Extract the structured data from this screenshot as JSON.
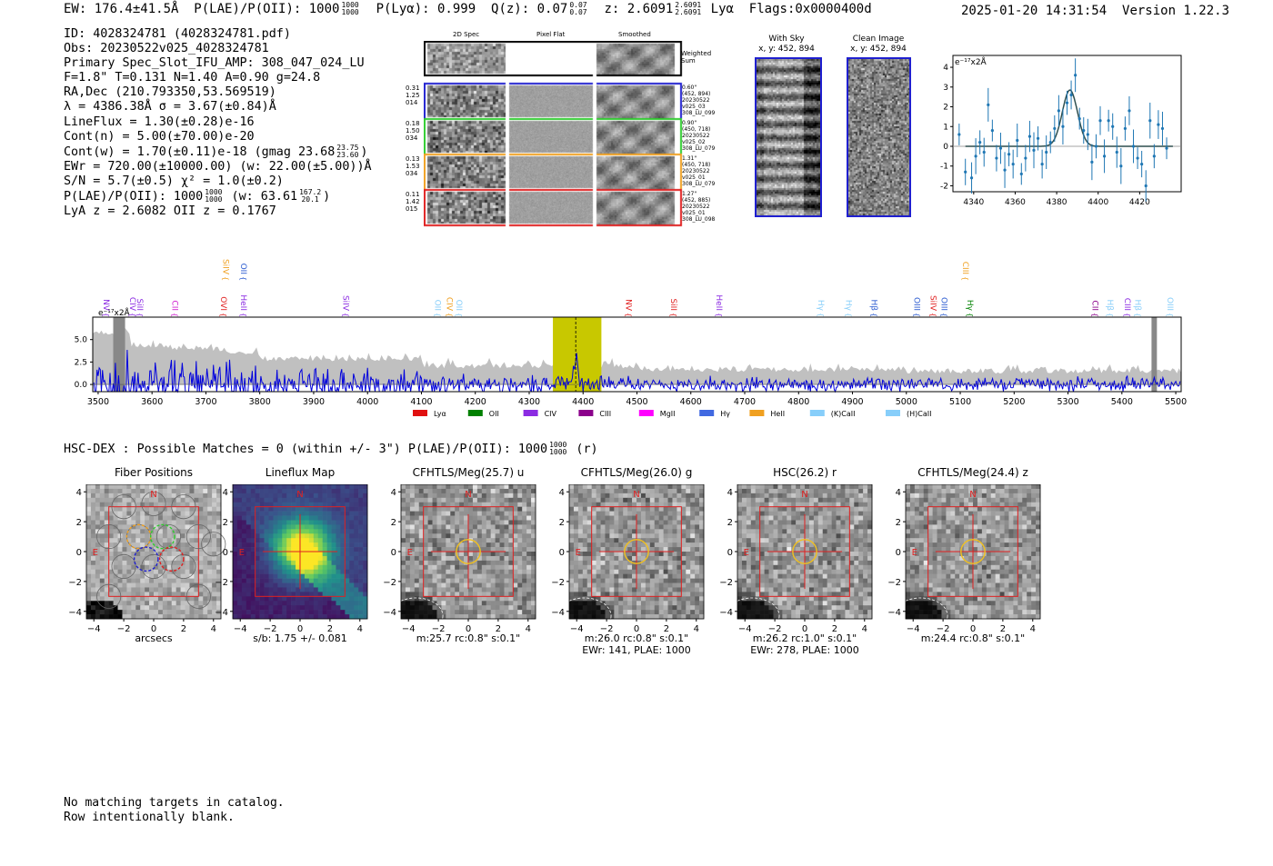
{
  "header": {
    "ew": "EW: 176.4±41.5Å",
    "plae_label": "P(LAE)/P(OII): 1000",
    "plae_hi": "1000",
    "plae_lo": "1000",
    "plya": "P(Lyα): 0.999",
    "qz_label": "Q(z): 0.07",
    "qz_hi": "0.07",
    "qz_lo": "0.07",
    "z_label": "z: 2.6091",
    "z_hi": "2.6091",
    "z_lo": "2.6091",
    "line": "Lyα",
    "flags": "Flags:0x0000400d",
    "datetime": "2025-01-20 14:31:54",
    "version": "Version 1.22.3"
  },
  "info": {
    "id": "ID: 4028324781 (4028324781.pdf)",
    "obs": "Obs: 20230522v025_4028324781",
    "primary": "Primary Spec_Slot_IFU_AMP: 308_047_024_LU",
    "fparams": "F=1.8\"  T=0.131  N=1.40  A=0.90  g=24.8",
    "radec": "RA,Dec (210.793350,53.569519)",
    "lambda": "λ = 4386.38Å   σ = 3.67(±0.84)Å",
    "lineflux": "LineFlux = 1.30(±0.28)e-16",
    "contn": "Cont(n) = 5.00(±70.00)e-20",
    "contw": "Cont(w) = 1.70(±0.11)e-18 (gmag 23.68",
    "contw_hi": "23.75",
    "contw_lo": "23.60",
    "contw_end": ")",
    "ewr": "EWr = 720.00(±10000.00) (w: 22.00(±5.00))Å",
    "sn": "S/N = 5.7(±0.5)  χ² = 1.0(±0.2)",
    "plae": "P(LAE)/P(OII): 1000",
    "plae_hi": "1000",
    "plae_lo": "1000",
    "plae_w": "(w: 63.61",
    "plae_w_hi": "167.2",
    "plae_w_lo": "20.1",
    "plae_w_end": ")",
    "lyaz": "LyA z = 2.6082  OII z = 0.1767"
  },
  "spec2d": {
    "col_titles": [
      "2D Spec",
      "Pixel Flat",
      "Smoothed"
    ],
    "weighted": "Weighted\nSum",
    "rows": [
      {
        "left": [
          "0.31",
          "1.25",
          "014"
        ],
        "right": [
          "0.60\"",
          "(452, 894)",
          "20230522",
          "v025_03",
          "308_LU_099"
        ],
        "color": "#1f1fcf"
      },
      {
        "left": [
          "0.18",
          "1.50",
          "034"
        ],
        "right": [
          "0.90\"",
          "(450, 718)",
          "20230522",
          "v025_02",
          "308_LU_079"
        ],
        "color": "#2ecc2e"
      },
      {
        "left": [
          "0.13",
          "1.53",
          "034"
        ],
        "right": [
          "1.31\"",
          "(450, 718)",
          "20230522",
          "v025_01",
          "308_LU_079"
        ],
        "color": "#f0a020"
      },
      {
        "left": [
          "0.11",
          "1.42",
          "015"
        ],
        "right": [
          "1.27\"",
          "(452, 885)",
          "20230522",
          "v025_01",
          "308_LU_098"
        ],
        "color": "#e02020"
      }
    ]
  },
  "sky": {
    "with_sky_title": "With Sky",
    "with_sky_coord": "x, y: 452, 894",
    "clean_title": "Clean Image",
    "clean_coord": "x, y: 452, 894"
  },
  "zoom_chart": {
    "ylabel": "e⁻¹⁷x2Å",
    "xticks": [
      4340,
      4360,
      4380,
      4400,
      4420
    ],
    "yticks": [
      -2,
      -1,
      0,
      1,
      2,
      3,
      4
    ],
    "xlim": [
      4330,
      4440
    ],
    "ylim": [
      -2.3,
      4.6
    ],
    "points_x": [
      4333,
      4336,
      4339,
      4341,
      4343,
      4345,
      4347,
      4349,
      4351,
      4353,
      4355,
      4357,
      4359,
      4361,
      4363,
      4365,
      4367,
      4369,
      4371,
      4373,
      4375,
      4377,
      4379,
      4381,
      4383,
      4385,
      4387,
      4389,
      4391,
      4393,
      4395,
      4397,
      4399,
      4401,
      4403,
      4405,
      4407,
      4409,
      4411,
      4413,
      4415,
      4417,
      4419,
      4421,
      4423,
      4425,
      4427,
      4429,
      4431,
      4433
    ],
    "points_y": [
      0.6,
      -1.3,
      -1.6,
      -0.5,
      0.2,
      -0.3,
      2.1,
      0.8,
      -0.6,
      -0.1,
      -1.2,
      -0.4,
      -0.9,
      0.3,
      -1.4,
      -0.6,
      0.5,
      -0.2,
      0.4,
      -0.9,
      -0.3,
      0.2,
      0.9,
      1.8,
      1.0,
      2.2,
      2.6,
      3.6,
      1.4,
      0.8,
      0.6,
      -0.8,
      0.0,
      1.3,
      -0.5,
      1.3,
      1.0,
      -0.3,
      -1.0,
      0.9,
      1.8,
      0.0,
      -0.6,
      -0.9,
      -2.0,
      1.3,
      -0.5,
      1.1,
      0.9,
      -0.1
    ],
    "fit": {
      "amp": 2.85,
      "center": 4386.38,
      "sigma": 3.67
    }
  },
  "full_spectrum": {
    "ylabel": "e⁻¹⁷x2Å",
    "xticks": [
      3500,
      3600,
      3700,
      3800,
      3900,
      4000,
      4100,
      4200,
      4300,
      4400,
      4500,
      4600,
      4700,
      4800,
      4900,
      5000,
      5100,
      5200,
      5300,
      5400,
      5500
    ],
    "yticks": [
      0.0,
      2.5,
      5.0
    ],
    "xlim": [
      3490,
      5510
    ],
    "ylim": [
      -0.8,
      7.5
    ],
    "highlight": [
      4344,
      4434
    ],
    "line_center": 4386.38,
    "lines_upper": [
      {
        "name": "NV",
        "wave": 3505,
        "color": "#8b2be2",
        "row": "low"
      },
      {
        "name": "CIV",
        "wave": 3554,
        "color": "#8b2be2",
        "row": "low"
      },
      {
        "name": "SiII",
        "wave": 3568,
        "color": "#8b2be2",
        "row": "low"
      },
      {
        "name": "CII",
        "wave": 3633,
        "color": "#d020d0",
        "row": "low"
      },
      {
        "name": "OVI",
        "wave": 3723,
        "color": "#e02020",
        "row": "low"
      },
      {
        "name": "SiIV",
        "wave": 3727,
        "color": "#f0a020",
        "row": "high"
      },
      {
        "name": "HeII",
        "wave": 3760,
        "color": "#8b2be2",
        "row": "low"
      },
      {
        "name": "OII",
        "wave": 3760,
        "color": "#2a5ad0",
        "row": "high"
      },
      {
        "name": "SiIV",
        "wave": 3950,
        "color": "#8b2be2",
        "row": "low"
      },
      {
        "name": "OII",
        "wave": 4120,
        "color": "#87cefa",
        "row": "low"
      },
      {
        "name": "CIV",
        "wave": 4142,
        "color": "#f0a020",
        "row": "low"
      },
      {
        "name": "OII",
        "wave": 4160,
        "color": "#87cefa",
        "row": "low"
      },
      {
        "name": "NV",
        "wave": 4475,
        "color": "#e02020",
        "row": "low"
      },
      {
        "name": "SiII",
        "wave": 4558,
        "color": "#e02020",
        "row": "low"
      },
      {
        "name": "HeII",
        "wave": 4643,
        "color": "#8b2be2",
        "row": "low"
      },
      {
        "name": "Hγ",
        "wave": 4832,
        "color": "#87cefa",
        "row": "low"
      },
      {
        "name": "Hγ",
        "wave": 4883,
        "color": "#87cefa",
        "row": "low"
      },
      {
        "name": "Hβ",
        "wave": 4930,
        "color": "#2a5ad0",
        "row": "low"
      },
      {
        "name": "OIII",
        "wave": 5010,
        "color": "#2a5ad0",
        "row": "low"
      },
      {
        "name": "SiIV",
        "wave": 5040,
        "color": "#e02020",
        "row": "low"
      },
      {
        "name": "OIII",
        "wave": 5060,
        "color": "#2a5ad0",
        "row": "low"
      },
      {
        "name": "CIII",
        "wave": 5100,
        "color": "#f0a020",
        "row": "high"
      },
      {
        "name": "Hγ",
        "wave": 5108,
        "color": "#008000",
        "row": "low"
      },
      {
        "name": "CII",
        "wave": 5340,
        "color": "#8b008b",
        "row": "low"
      },
      {
        "name": "Hβ",
        "wave": 5368,
        "color": "#87cefa",
        "row": "low"
      },
      {
        "name": "CIII",
        "wave": 5400,
        "color": "#8b2be2",
        "row": "low"
      },
      {
        "name": "Hβ",
        "wave": 5420,
        "color": "#87cefa",
        "row": "low"
      },
      {
        "name": "OIII",
        "wave": 5480,
        "color": "#87cefa",
        "row": "low"
      }
    ],
    "legend": [
      {
        "label": "Lyα",
        "color": "#e01010"
      },
      {
        "label": "OII",
        "color": "#008000"
      },
      {
        "label": "CIV",
        "color": "#8b2be2"
      },
      {
        "label": "CIII",
        "color": "#8b008b"
      },
      {
        "label": "MgII",
        "color": "#ff00ff"
      },
      {
        "label": "Hγ",
        "color": "#4169e1"
      },
      {
        "label": "HeII",
        "color": "#f0a020"
      },
      {
        "label": "(K)CaII",
        "color": "#87cefa"
      },
      {
        "label": "(H)CaII",
        "color": "#87cefa"
      }
    ]
  },
  "hsc": {
    "line": "HSC-DEX : Possible Matches = 0 (within +/- 3\")  P(LAE)/P(OII): 1000",
    "hi": "1000",
    "lo": "1000",
    "end": "(r)"
  },
  "cutouts": [
    {
      "title": "Fiber Positions",
      "caption1": "arcsecs",
      "caption2": "",
      "kind": "fiber"
    },
    {
      "title": "Lineflux Map",
      "caption1": "s/b: 1.75 +/- 0.081",
      "caption2": "",
      "kind": "lineflux"
    },
    {
      "title": "CFHTLS/Meg(25.7) u",
      "caption1": "m:25.7 rc:0.8\"  s:0.1\"",
      "caption2": "",
      "kind": "img"
    },
    {
      "title": "CFHTLS/Meg(26.0) g",
      "caption1": "m:26.0 rc:0.8\"  s:0.1\"",
      "caption2": "EWr: 141, PLAE: 1000",
      "kind": "img"
    },
    {
      "title": "HSC(26.2) r",
      "caption1": "m:26.2 rc:1.0\"  s:0.1\"",
      "caption2": "EWr: 278, PLAE: 1000",
      "kind": "img"
    },
    {
      "title": "CFHTLS/Meg(24.4) z",
      "caption1": "m:24.4 rc:0.8\"  s:0.1\"",
      "caption2": "",
      "kind": "img"
    }
  ],
  "cutout_axis": {
    "ticks": [
      -4,
      -2,
      0,
      2,
      4
    ],
    "north": "N",
    "east": "E"
  },
  "footer": {
    "line1": "No matching targets in catalog.",
    "line2": "Row intentionally blank."
  }
}
